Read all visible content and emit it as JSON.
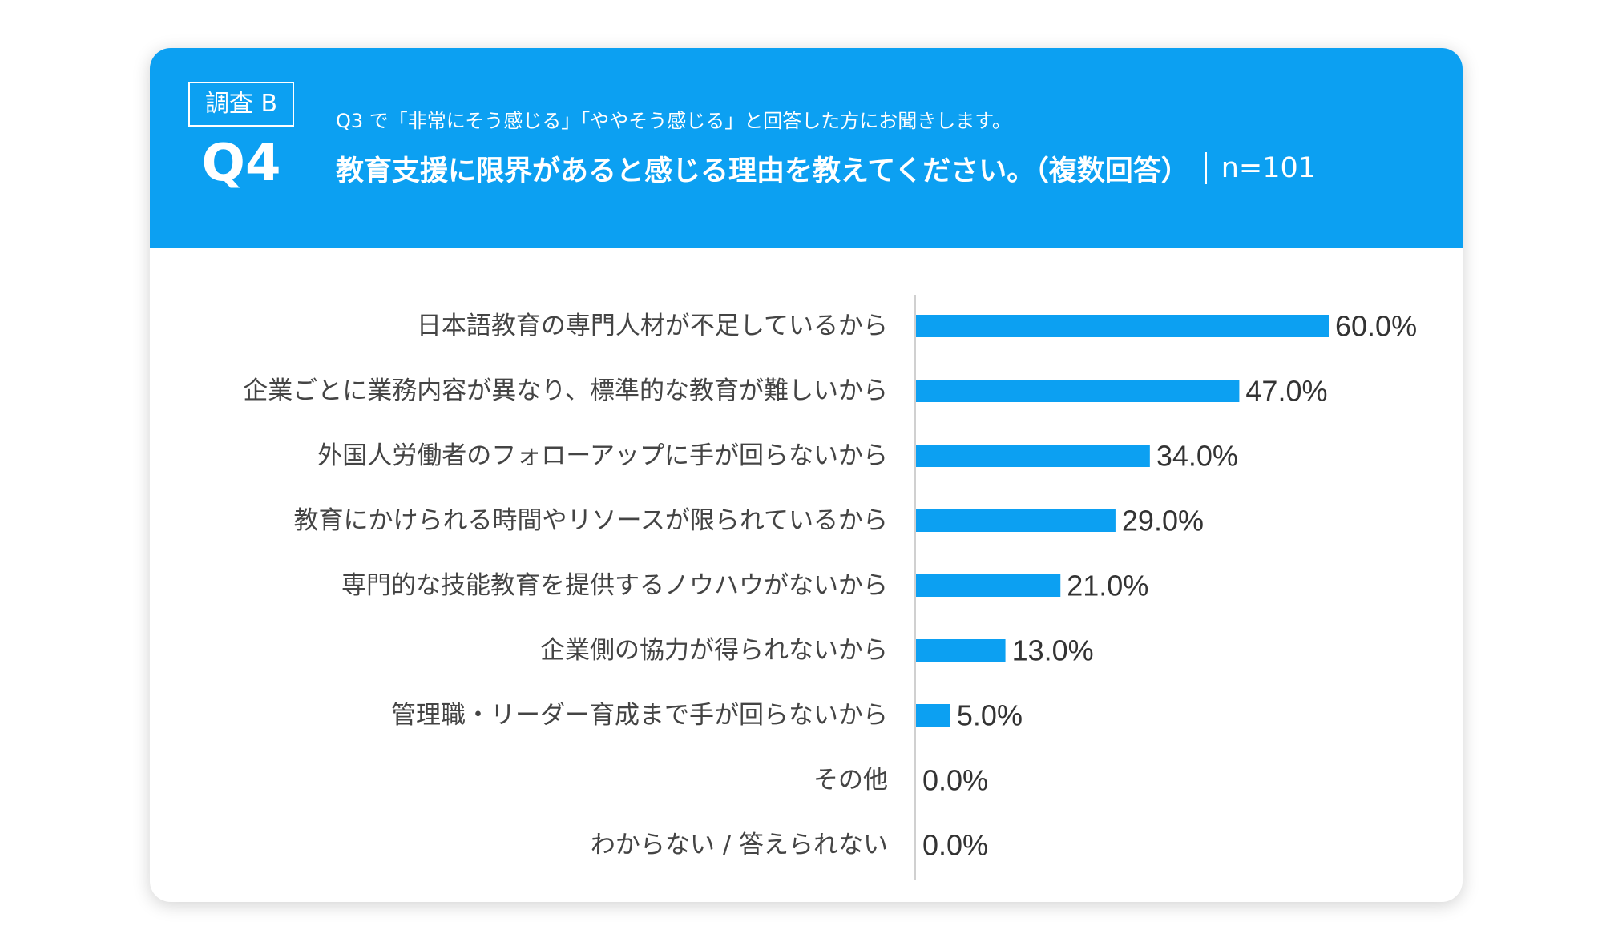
{
  "header": {
    "survey_badge": "調査 B",
    "question_number": "Q4",
    "pre_question": "Q3 で「非常にそう感じる」「ややそう感じる」と回答した方にお聞きします。",
    "question": "教育支援に限界があると感じる理由を教えてください。（複数回答）",
    "sample_size": "n=101",
    "background_color": "#0ca0f2"
  },
  "chart_data": {
    "type": "bar",
    "orientation": "horizontal",
    "categories": [
      "日本語教育の専門人材が不足しているから",
      "企業ごとに業務内容が異なり、標準的な教育が難しいから",
      "外国人労働者のフォローアップに手が回らないから",
      "教育にかけられる時間やリソースが限られているから",
      "専門的な技能教育を提供するノウハウがないから",
      "企業側の協力が得られないから",
      "管理職・リーダー育成まで手が回らないから",
      "その他",
      "わからない / 答えられない"
    ],
    "values": [
      60.0,
      47.0,
      34.0,
      29.0,
      21.0,
      13.0,
      5.0,
      0.0,
      0.0
    ],
    "value_labels": [
      "60.0%",
      "47.0%",
      "34.0%",
      "29.0%",
      "21.0%",
      "13.0%",
      "5.0%",
      "0.0%",
      "0.0%"
    ],
    "xlim": [
      0,
      60
    ],
    "bar_color": "#0ca0f2",
    "grid": false,
    "legend": false
  }
}
